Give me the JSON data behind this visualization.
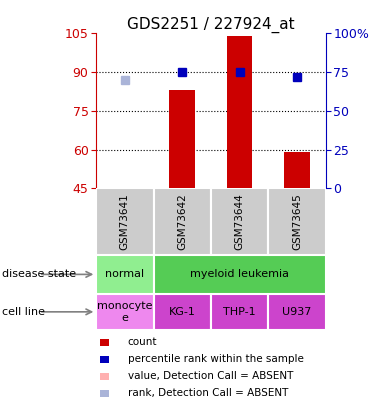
{
  "title": "GDS2251 / 227924_at",
  "samples": [
    "GSM73641",
    "GSM73642",
    "GSM73644",
    "GSM73645"
  ],
  "bar_values": [
    45,
    83,
    104,
    59
  ],
  "bar_colors": [
    "#ffb0b0",
    "#cc0000",
    "#cc0000",
    "#cc0000"
  ],
  "rank_values": [
    70,
    75,
    75,
    72
  ],
  "rank_colors": [
    "#aab4d8",
    "#0000bb",
    "#0000bb",
    "#0000bb"
  ],
  "ylim_left": [
    45,
    105
  ],
  "ylim_right": [
    0,
    100
  ],
  "yticks_left": [
    45,
    60,
    75,
    90,
    105
  ],
  "ytick_labels_right": [
    "0",
    "25",
    "50",
    "75",
    "100%"
  ],
  "yticks_right": [
    0,
    25,
    50,
    75,
    100
  ],
  "gridlines_at": [
    60,
    75,
    90
  ],
  "disease_state_colors": [
    "#90ee90",
    "#55cc55"
  ],
  "cell_line_colors": [
    "#ee88ee",
    "#cc44cc",
    "#cc44cc",
    "#cc44cc"
  ],
  "legend_items": [
    {
      "label": "count",
      "color": "#cc0000"
    },
    {
      "label": "percentile rank within the sample",
      "color": "#0000bb"
    },
    {
      "label": "value, Detection Call = ABSENT",
      "color": "#ffb0b0"
    },
    {
      "label": "rank, Detection Call = ABSENT",
      "color": "#aab4d8"
    }
  ],
  "left_axis_color": "#cc0000",
  "right_axis_color": "#0000bb",
  "sample_band_color": "#cccccc",
  "plot_bg": "#ffffff",
  "bar_bottom": 45,
  "n_samples": 4
}
